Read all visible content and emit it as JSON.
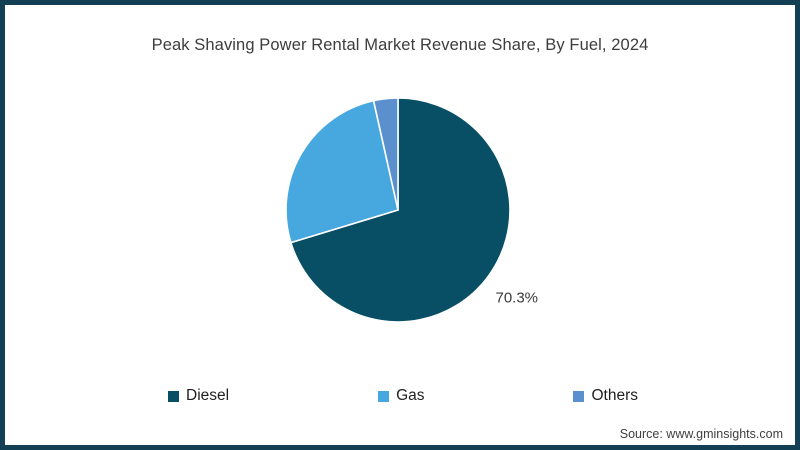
{
  "title": "Peak Shaving Power Rental Market Revenue Share, By Fuel, 2024",
  "source": "Source: www.gminsights.com",
  "colors": {
    "frame_border": "#123f54",
    "title_text": "#3d3d3d",
    "diesel": "#084F66",
    "gas": "#47A7DF",
    "others": "#5B90CE",
    "slice_separator": "#ffffff"
  },
  "chart_data": {
    "type": "pie",
    "title": "Peak Shaving Power Rental Market Revenue Share, By Fuel, 2024",
    "start_angle_deg": 0,
    "direction": "clockwise",
    "legend_position": "bottom",
    "slices": [
      {
        "label": "Diesel",
        "value": 70.3,
        "color": "#084F66",
        "data_label": "70.3%"
      },
      {
        "label": "Gas",
        "value": 26.2,
        "color": "#47A7DF",
        "data_label": ""
      },
      {
        "label": "Others",
        "value": 3.5,
        "color": "#5B90CE",
        "data_label": ""
      }
    ]
  }
}
